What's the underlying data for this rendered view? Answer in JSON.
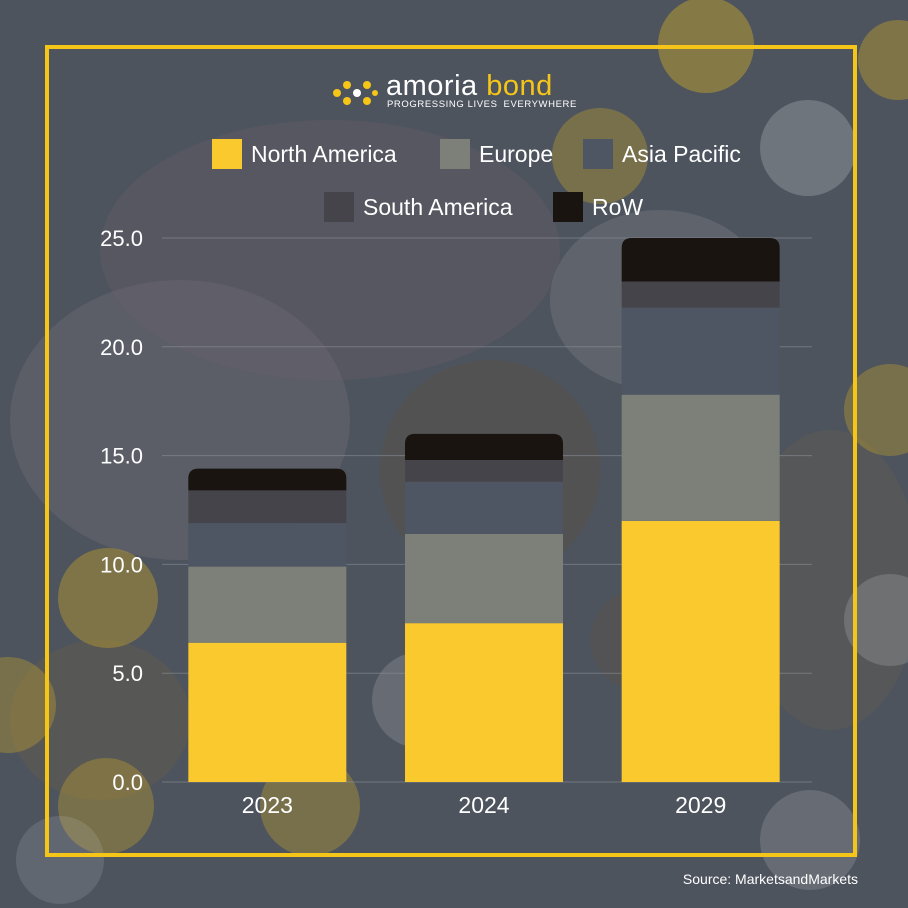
{
  "logo": {
    "brand_part1": "amoria",
    "brand_part2": "bond",
    "tagline_part1": "PROGRESSING LIVES",
    "tagline_part2": "EVERYWHERE"
  },
  "source": "Source: MarketsandMarkets",
  "colors": {
    "accent": "#f5c518",
    "background": "#4d545e"
  },
  "chart_data": {
    "type": "bar",
    "stacked": true,
    "categories": [
      "2023",
      "2024",
      "2029"
    ],
    "ylim": [
      0,
      25
    ],
    "yticks": [
      "0.0",
      "5.0",
      "10.0",
      "15.0",
      "20.0",
      "25.0"
    ],
    "grid": true,
    "legend_position": "top",
    "series": [
      {
        "name": "North America",
        "color": "#f9c92d",
        "values": [
          6.4,
          7.3,
          12.0
        ]
      },
      {
        "name": "Europe",
        "color": "#7c8079",
        "values": [
          3.5,
          4.1,
          5.8
        ]
      },
      {
        "name": "Asia Pacific",
        "color": "#4e5663",
        "values": [
          2.0,
          2.4,
          4.0
        ]
      },
      {
        "name": "South America",
        "color": "#45444a",
        "values": [
          1.5,
          1.0,
          1.2
        ]
      },
      {
        "name": "RoW",
        "color": "#1a1410",
        "values": [
          1.0,
          1.2,
          2.0
        ]
      }
    ]
  }
}
